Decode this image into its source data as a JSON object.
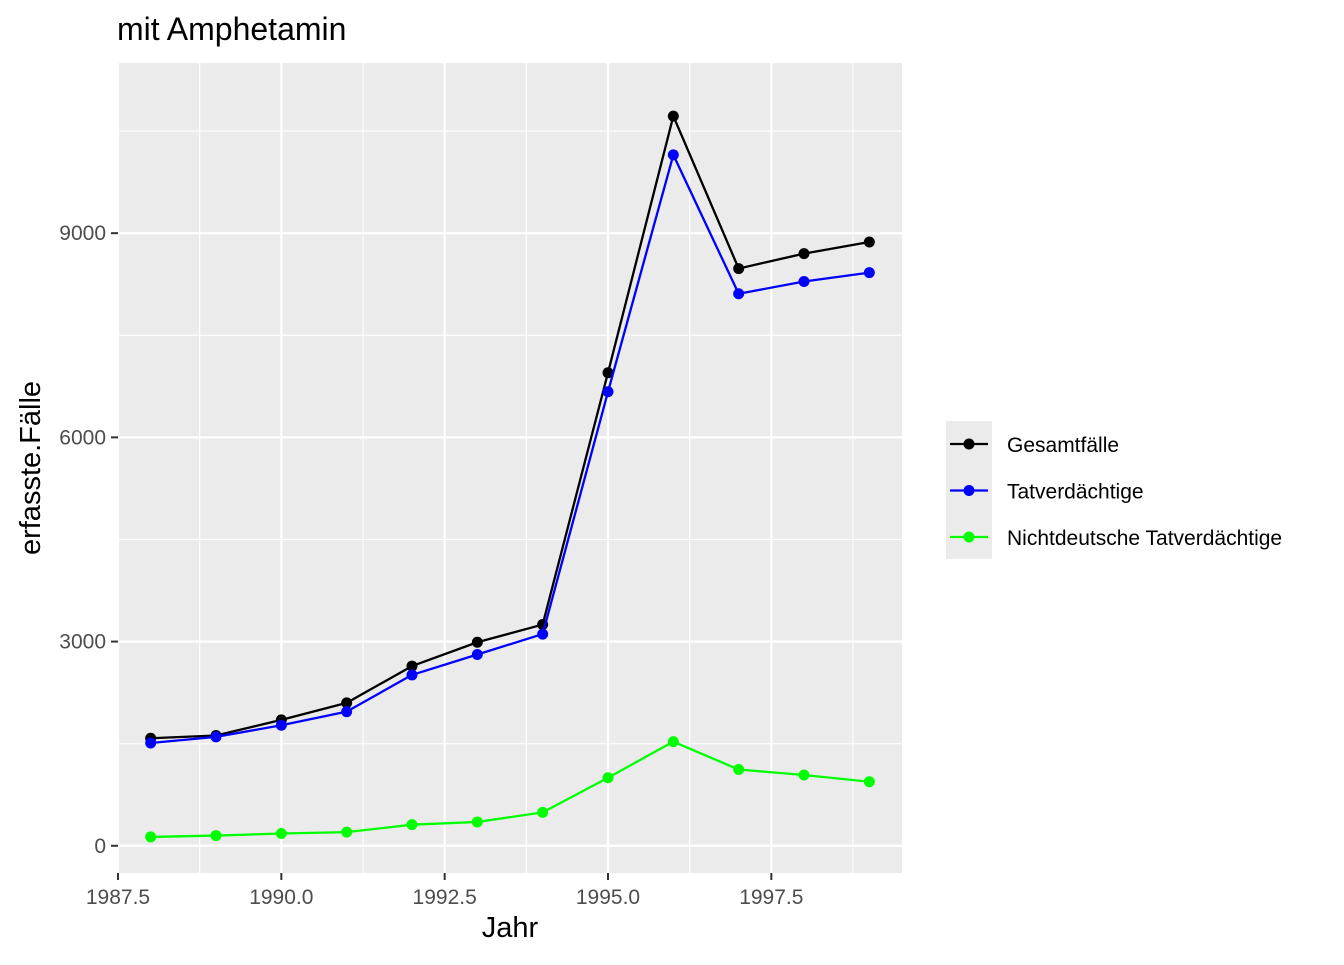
{
  "chart_data": {
    "type": "line",
    "title": "mit Amphetamin",
    "xlabel": "Jahr",
    "ylabel": "erfasste.Fälle",
    "xlim": [
      1987.5,
      1999.5
    ],
    "ylim": [
      -400,
      11500
    ],
    "x_ticks": [
      1987.5,
      1990.0,
      1992.5,
      1995.0,
      1997.5
    ],
    "x_tick_labels": [
      "1987.5",
      "1990.0",
      "1992.5",
      "1995.0",
      "1997.5"
    ],
    "y_ticks": [
      0,
      3000,
      6000,
      9000
    ],
    "y_tick_labels": [
      "0",
      "3000",
      "6000",
      "9000"
    ],
    "grid": true,
    "legend_position": "right",
    "x": [
      1988,
      1989,
      1990,
      1991,
      1992,
      1993,
      1994,
      1995,
      1996,
      1997,
      1998,
      1999
    ],
    "series": [
      {
        "name": "Gesamtfälle",
        "color": "#000000",
        "values": [
          1580,
          1620,
          1850,
          2100,
          2640,
          2990,
          3250,
          6950,
          10720,
          8480,
          8700,
          8870
        ]
      },
      {
        "name": "Tatverdächtige",
        "color": "#0000ff",
        "values": [
          1510,
          1600,
          1770,
          1970,
          2510,
          2810,
          3110,
          6670,
          10150,
          8110,
          8290,
          8420
        ]
      },
      {
        "name": "Nichtdeutsche Tatverdächtige",
        "color": "#00ff00",
        "values": [
          130,
          150,
          180,
          200,
          310,
          350,
          490,
          1000,
          1530,
          1120,
          1040,
          940
        ]
      }
    ]
  }
}
